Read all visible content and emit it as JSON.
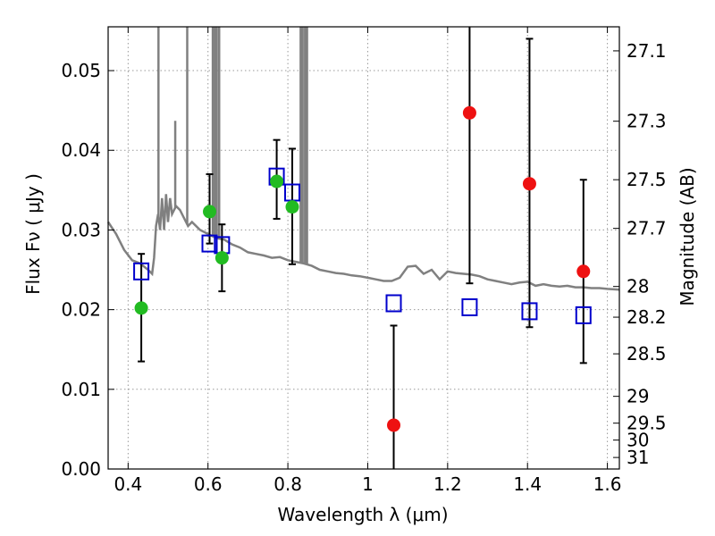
{
  "chart_data": {
    "type": "scatter",
    "xlabel": "Wavelength  λ (μm)",
    "ylabel": "Flux  Fν  ( μJy )",
    "y2label": "Magnitude (AB)",
    "xlim": [
      0.35,
      1.63
    ],
    "ylim": [
      0.0,
      0.0555
    ],
    "grid": true,
    "xticks": [
      0.4,
      0.6,
      0.8,
      1.0,
      1.2,
      1.4,
      1.6
    ],
    "xtick_labels": [
      "0.4",
      "0.6",
      "0.8",
      "1",
      "1.2",
      "1.4",
      "1.6"
    ],
    "yticks": [
      0.0,
      0.01,
      0.02,
      0.03,
      0.04,
      0.05
    ],
    "ytick_labels": [
      "0.00",
      "0.01",
      "0.02",
      "0.03",
      "0.04",
      "0.05"
    ],
    "y2ticks": [
      "27.1",
      "27.3",
      "27.5",
      "27.7",
      "28",
      "28.2",
      "28.5",
      "29",
      "29.5",
      "30",
      "31"
    ],
    "colors": {
      "template": "#808080",
      "model_box": "#0000cc",
      "optical": "#22bb22",
      "nir": "#ee1111",
      "errorbar": "#000000",
      "grid": "#999999"
    },
    "sed_template": {
      "x": [
        0.35,
        0.37,
        0.39,
        0.41,
        0.43,
        0.45,
        0.46,
        0.465,
        0.47,
        0.475,
        0.48,
        0.485,
        0.49,
        0.495,
        0.5,
        0.505,
        0.51,
        0.52,
        0.53,
        0.55,
        0.56,
        0.58,
        0.6,
        0.62,
        0.64,
        0.66,
        0.68,
        0.7,
        0.72,
        0.74,
        0.76,
        0.78,
        0.8,
        0.82,
        0.84,
        0.86,
        0.88,
        0.9,
        0.92,
        0.94,
        0.96,
        0.98,
        1.0,
        1.02,
        1.04,
        1.06,
        1.08,
        1.1,
        1.12,
        1.14,
        1.16,
        1.18,
        1.2,
        1.22,
        1.24,
        1.26,
        1.28,
        1.3,
        1.32,
        1.34,
        1.36,
        1.38,
        1.4,
        1.42,
        1.44,
        1.46,
        1.48,
        1.5,
        1.52,
        1.54,
        1.56,
        1.58,
        1.6,
        1.63
      ],
      "y": [
        0.031,
        0.0295,
        0.0275,
        0.0262,
        0.0258,
        0.025,
        0.0245,
        0.0265,
        0.0305,
        0.032,
        0.03,
        0.034,
        0.03,
        0.0345,
        0.031,
        0.034,
        0.032,
        0.033,
        0.0325,
        0.0305,
        0.031,
        0.03,
        0.0295,
        0.029,
        0.0288,
        0.0282,
        0.0278,
        0.0272,
        0.027,
        0.0268,
        0.0265,
        0.0266,
        0.0262,
        0.026,
        0.0258,
        0.0255,
        0.025,
        0.0248,
        0.0246,
        0.0245,
        0.0243,
        0.0242,
        0.024,
        0.0238,
        0.0236,
        0.0236,
        0.024,
        0.0254,
        0.0255,
        0.0245,
        0.025,
        0.0238,
        0.0248,
        0.0246,
        0.0245,
        0.0244,
        0.0242,
        0.0238,
        0.0236,
        0.0234,
        0.0232,
        0.0234,
        0.0235,
        0.023,
        0.0232,
        0.023,
        0.0229,
        0.023,
        0.0228,
        0.0228,
        0.0227,
        0.0227,
        0.0226,
        0.0225
      ]
    },
    "emission_lines": [
      {
        "x": 0.476,
        "y": 0.0555
      },
      {
        "x": 0.518,
        "y": 0.0437
      },
      {
        "x": 0.548,
        "y": 0.0555
      },
      {
        "x": 0.612,
        "y": 0.0555
      },
      {
        "x": 0.617,
        "y": 0.0555
      },
      {
        "x": 0.622,
        "y": 0.0555
      },
      {
        "x": 0.628,
        "y": 0.0555
      },
      {
        "x": 0.832,
        "y": 0.0555
      },
      {
        "x": 0.837,
        "y": 0.0555
      },
      {
        "x": 0.843,
        "y": 0.0555
      },
      {
        "x": 0.848,
        "y": 0.0555
      }
    ],
    "series": [
      {
        "marker": "square",
        "x": [
          0.433,
          0.604,
          0.635,
          0.772,
          0.811,
          1.065,
          1.255,
          1.405,
          1.54
        ],
        "y": [
          0.0248,
          0.0283,
          0.0281,
          0.0367,
          0.0347,
          0.0208,
          0.0203,
          0.0198,
          0.0193
        ]
      },
      {
        "marker": "circle",
        "x": [
          0.433,
          0.604,
          0.635,
          0.772,
          0.811
        ],
        "y": [
          0.0202,
          0.0323,
          0.0265,
          0.0361,
          0.0329
        ],
        "yerr_low": [
          0.0135,
          0.0283,
          0.0223,
          0.0314,
          0.0257
        ],
        "yerr_high": [
          0.027,
          0.037,
          0.0307,
          0.0413,
          0.0402
        ]
      },
      {
        "marker": "circle",
        "x": [
          1.065,
          1.255,
          1.405,
          1.54
        ],
        "y": [
          0.0055,
          0.0447,
          0.0358,
          0.0248
        ],
        "yerr_low": [
          0.0,
          0.0233,
          0.0178,
          0.0133
        ],
        "yerr_high": [
          0.018,
          0.0555,
          0.054,
          0.0363
        ]
      }
    ]
  }
}
